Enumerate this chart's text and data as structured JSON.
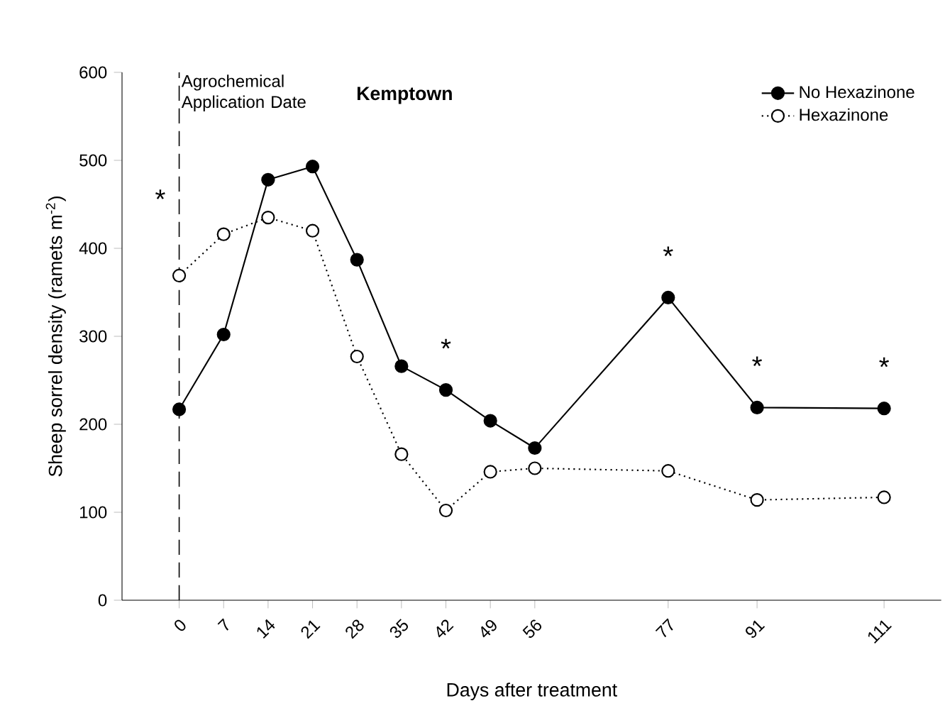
{
  "chart_data": {
    "type": "line",
    "title": "Kemptown",
    "xlabel": "Days after treatment",
    "ylabel": "Sheep sorrel density (ramets m$^{-2}$)",
    "x": [
      0,
      7,
      14,
      21,
      28,
      35,
      42,
      49,
      56,
      77,
      91,
      111
    ],
    "series": [
      {
        "name": "No Hexazinone",
        "color": "#000000",
        "marker": "circle",
        "line_style": "solid",
        "values": [
          217,
          302,
          478,
          493,
          387,
          266,
          239,
          204,
          173,
          344,
          219,
          218
        ]
      },
      {
        "name": "Hexazinone",
        "color": "#000000",
        "marker": "circle",
        "line_style": "dotted",
        "values": [
          369,
          416,
          435,
          420,
          277,
          166,
          102,
          146,
          150,
          147,
          114,
          117
        ]
      }
    ],
    "xlim": [
      -9,
      120
    ],
    "ylim": [
      0,
      600
    ],
    "xticks": [
      0,
      7,
      14,
      21,
      28,
      35,
      42,
      49,
      56,
      77,
      91,
      111
    ],
    "yticks": [
      0,
      100,
      200,
      300,
      400,
      500,
      600
    ],
    "ref_lines": [
      {
        "axis": "x",
        "value": 0,
        "label": "Agrochemical Application Date",
        "line_style": "dashed",
        "color": "#000000"
      }
    ],
    "annotations": [
      "*",
      {
        "text": "*",
        "x": 42,
        "y": 239
      },
      {
        "text": "*",
        "x": 77,
        "y": 344
      },
      {
        "text": "*",
        "x": 91,
        "y": 219
      },
      {
        "text": "*",
        "x": 111,
        "y": 218
      }
    ],
    "grid": false,
    "legend": "top right"
  }
}
